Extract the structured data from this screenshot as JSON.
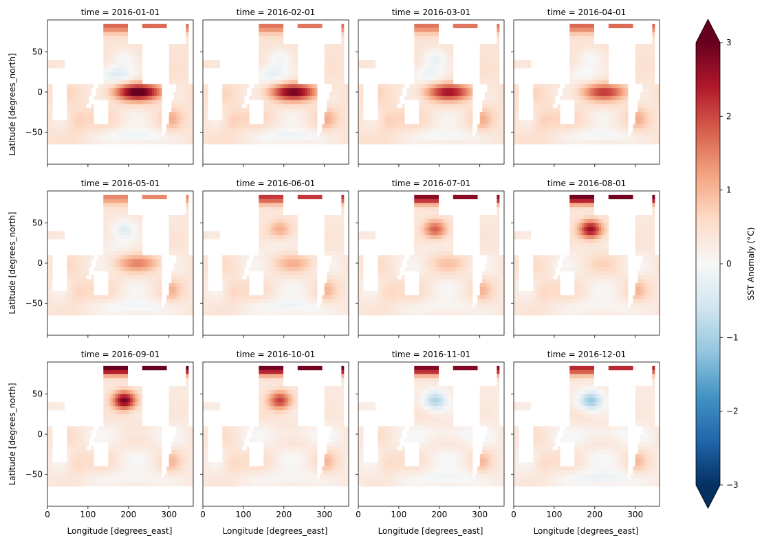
{
  "chart_data": {
    "type": "heatmap",
    "variable": "SST Anomaly (°C)",
    "colormap": "RdBu_r",
    "vmin": -3,
    "vmax": 3,
    "extend": "both",
    "xlabel": "Longitude [degrees_east]",
    "ylabel": "Latitude [degrees_north]",
    "xlim": [
      0,
      360
    ],
    "ylim": [
      -90,
      90
    ],
    "xticks": [
      0,
      100,
      200,
      300
    ],
    "xtick_labels": [
      "0",
      "100",
      "200",
      "300"
    ],
    "yticks": [
      -50,
      0,
      50
    ],
    "ytick_labels": [
      "−50",
      "0",
      "50"
    ],
    "colorbar_ticks": [
      -3,
      -2,
      -1,
      0,
      1,
      2,
      3
    ],
    "colorbar_tick_labels": [
      "−3",
      "−2",
      "−1",
      "0",
      "1",
      "2",
      "3"
    ],
    "colorbar_label": "SST Anomaly (°C)",
    "layout": "3 rows × 4 columns",
    "panels": [
      {
        "title": "time = 2016-01-01",
        "nino_anomaly": 2.6,
        "global_mean": 0.75,
        "north_pacific": -0.4,
        "arctic": 1.3,
        "southern": -0.6
      },
      {
        "title": "time = 2016-02-01",
        "nino_anomaly": 2.3,
        "global_mean": 0.75,
        "north_pacific": -0.5,
        "arctic": 1.2,
        "southern": -0.6
      },
      {
        "title": "time = 2016-03-01",
        "nino_anomaly": 1.9,
        "global_mean": 0.75,
        "north_pacific": -0.6,
        "arctic": 1.2,
        "southern": -0.5
      },
      {
        "title": "time = 2016-04-01",
        "nino_anomaly": 1.5,
        "global_mean": 0.75,
        "north_pacific": -0.4,
        "arctic": 1.3,
        "southern": -0.5
      },
      {
        "title": "time = 2016-05-01",
        "nino_anomaly": 0.9,
        "global_mean": 0.65,
        "north_pacific": -0.7,
        "arctic": 1.1,
        "southern": -0.5
      },
      {
        "title": "time = 2016-06-01",
        "nino_anomaly": 0.5,
        "global_mean": 0.6,
        "north_pacific": 0.8,
        "arctic": 1.8,
        "southern": -0.5
      },
      {
        "title": "time = 2016-07-01",
        "nino_anomaly": 0.3,
        "global_mean": 0.6,
        "north_pacific": 1.5,
        "arctic": 2.4,
        "southern": -0.3
      },
      {
        "title": "time = 2016-08-01",
        "nino_anomaly": 0.1,
        "global_mean": 0.6,
        "north_pacific": 2.3,
        "arctic": 2.6,
        "southern": -0.3
      },
      {
        "title": "time = 2016-09-01",
        "nino_anomaly": -0.2,
        "global_mean": 0.55,
        "north_pacific": 2.6,
        "arctic": 2.7,
        "southern": -0.3
      },
      {
        "title": "time = 2016-10-01",
        "nino_anomaly": -0.3,
        "global_mean": 0.55,
        "north_pacific": 1.8,
        "arctic": 2.6,
        "southern": -0.3
      },
      {
        "title": "time = 2016-11-01",
        "nino_anomaly": -0.4,
        "global_mean": 0.5,
        "north_pacific": -1.2,
        "arctic": 2.5,
        "southern": -0.4
      },
      {
        "title": "time = 2016-12-01",
        "nino_anomaly": -0.4,
        "global_mean": 0.5,
        "north_pacific": -1.4,
        "arctic": 2.0,
        "southern": -0.5
      }
    ]
  }
}
